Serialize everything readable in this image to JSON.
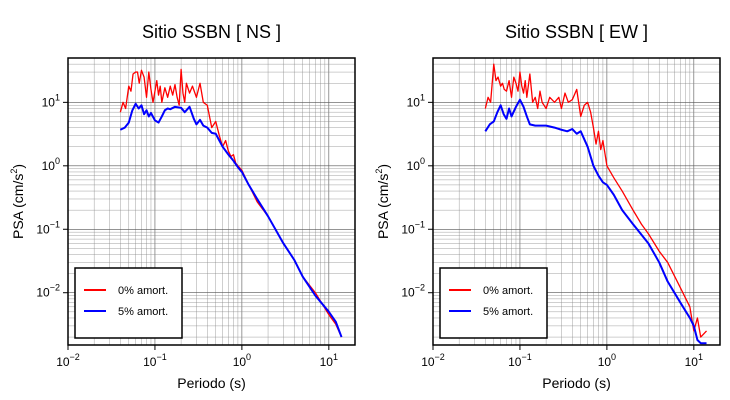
{
  "chart_data": [
    {
      "type": "line",
      "title": "Sitio SSBN [ NS ]",
      "xlabel": "Periodo (s)",
      "ylabel_main": "PSA (cm/s",
      "ylabel_sup": "2",
      "ylabel_tail": ")",
      "xscale": "log",
      "yscale": "log",
      "xlim": [
        0.01,
        20
      ],
      "ylim": [
        0.0015,
        50
      ],
      "grid": true,
      "legend_position": "bottom-left",
      "x_ticks": [
        {
          "value": 0.01,
          "base": "10",
          "exp": "−2"
        },
        {
          "value": 0.1,
          "base": "10",
          "exp": "−1"
        },
        {
          "value": 1,
          "base": "10",
          "exp": "0"
        },
        {
          "value": 10,
          "base": "10",
          "exp": "1"
        }
      ],
      "y_ticks": [
        {
          "value": 0.01,
          "base": "10",
          "exp": "−2"
        },
        {
          "value": 0.1,
          "base": "10",
          "exp": "−1"
        },
        {
          "value": 1,
          "base": "10",
          "exp": "0"
        },
        {
          "value": 10,
          "base": "10",
          "exp": "1"
        }
      ],
      "series": [
        {
          "name": "0% amort.",
          "color": "#ff0000",
          "x": [
            0.04,
            0.043,
            0.046,
            0.05,
            0.053,
            0.056,
            0.06,
            0.063,
            0.066,
            0.07,
            0.075,
            0.08,
            0.085,
            0.09,
            0.095,
            0.1,
            0.105,
            0.11,
            0.115,
            0.12,
            0.13,
            0.14,
            0.15,
            0.16,
            0.17,
            0.18,
            0.19,
            0.2,
            0.21,
            0.22,
            0.23,
            0.25,
            0.27,
            0.3,
            0.33,
            0.36,
            0.4,
            0.45,
            0.5,
            0.55,
            0.6,
            0.65,
            0.7,
            0.75,
            0.8,
            0.85,
            0.9,
            1.0,
            1.2,
            1.5,
            2,
            3,
            4,
            5,
            7,
            10,
            12,
            14
          ],
          "y": [
            7,
            10,
            8,
            18,
            15,
            28,
            30,
            30,
            20,
            32,
            25,
            12,
            30,
            16,
            10,
            15,
            22,
            13,
            18,
            10,
            17,
            12,
            18,
            13,
            19,
            12,
            9,
            33,
            14,
            10,
            20,
            14,
            18,
            12,
            20,
            10,
            9,
            4,
            5,
            3,
            2,
            2.5,
            1.7,
            1.4,
            1.5,
            1.1,
            1.0,
            0.85,
            0.5,
            0.27,
            0.16,
            0.06,
            0.033,
            0.018,
            0.01,
            0.0045,
            0.0032,
            0.002
          ]
        },
        {
          "name": "5% amort.",
          "color": "#0000ff",
          "x": [
            0.04,
            0.045,
            0.05,
            0.055,
            0.06,
            0.065,
            0.07,
            0.075,
            0.08,
            0.085,
            0.09,
            0.1,
            0.11,
            0.12,
            0.13,
            0.14,
            0.15,
            0.17,
            0.2,
            0.22,
            0.25,
            0.28,
            0.3,
            0.33,
            0.36,
            0.4,
            0.45,
            0.5,
            0.6,
            0.7,
            0.8,
            0.9,
            1.0,
            1.2,
            1.5,
            2,
            3,
            4,
            5,
            7,
            10,
            12,
            14
          ],
          "y": [
            3.7,
            4.0,
            4.8,
            7.5,
            9.5,
            8.0,
            9.0,
            6.5,
            7.5,
            6.0,
            6.8,
            5.2,
            4.8,
            6.0,
            7.5,
            8.0,
            7.8,
            8.5,
            8.2,
            7.0,
            8.5,
            5.5,
            4.5,
            5.3,
            4.3,
            4.0,
            3.3,
            3.2,
            2.0,
            1.5,
            1.2,
            0.95,
            0.8,
            0.5,
            0.3,
            0.16,
            0.06,
            0.033,
            0.018,
            0.009,
            0.005,
            0.0035,
            0.002
          ]
        }
      ]
    },
    {
      "type": "line",
      "title": "Sitio SSBN [ EW ]",
      "xlabel": "Periodo (s)",
      "ylabel_main": "PSA (cm/s",
      "ylabel_sup": "2",
      "ylabel_tail": ")",
      "xscale": "log",
      "yscale": "log",
      "xlim": [
        0.01,
        20
      ],
      "ylim": [
        0.0015,
        50
      ],
      "grid": true,
      "legend_position": "bottom-left",
      "x_ticks": [
        {
          "value": 0.01,
          "base": "10",
          "exp": "−2"
        },
        {
          "value": 0.1,
          "base": "10",
          "exp": "−1"
        },
        {
          "value": 1,
          "base": "10",
          "exp": "0"
        },
        {
          "value": 10,
          "base": "10",
          "exp": "1"
        }
      ],
      "y_ticks": [
        {
          "value": 0.01,
          "base": "10",
          "exp": "−2"
        },
        {
          "value": 0.1,
          "base": "10",
          "exp": "−1"
        },
        {
          "value": 1,
          "base": "10",
          "exp": "0"
        },
        {
          "value": 10,
          "base": "10",
          "exp": "1"
        }
      ],
      "series": [
        {
          "name": "0% amort.",
          "color": "#ff0000",
          "x": [
            0.04,
            0.043,
            0.046,
            0.05,
            0.053,
            0.056,
            0.06,
            0.063,
            0.066,
            0.07,
            0.075,
            0.08,
            0.085,
            0.09,
            0.095,
            0.1,
            0.105,
            0.11,
            0.115,
            0.12,
            0.13,
            0.14,
            0.15,
            0.16,
            0.17,
            0.18,
            0.2,
            0.22,
            0.25,
            0.28,
            0.3,
            0.33,
            0.36,
            0.4,
            0.45,
            0.5,
            0.55,
            0.6,
            0.65,
            0.7,
            0.75,
            0.8,
            0.85,
            0.9,
            1.0,
            1.2,
            1.5,
            2,
            2.5,
            3,
            4,
            5,
            7,
            9,
            10,
            11,
            12,
            14
          ],
          "y": [
            8,
            12,
            10,
            40,
            22,
            25,
            18,
            20,
            16,
            15,
            22,
            12,
            25,
            20,
            15,
            30,
            18,
            14,
            22,
            12,
            28,
            10,
            12,
            8,
            15,
            10,
            8,
            12,
            10,
            12,
            8,
            14,
            10,
            11,
            16,
            6,
            9,
            10,
            7,
            4,
            2.2,
            3.5,
            1.8,
            2.5,
            1.0,
            0.65,
            0.4,
            0.2,
            0.12,
            0.085,
            0.045,
            0.03,
            0.012,
            0.006,
            0.0025,
            0.004,
            0.002,
            0.0025
          ]
        },
        {
          "name": "5% amort.",
          "color": "#0000ff",
          "x": [
            0.04,
            0.045,
            0.05,
            0.055,
            0.06,
            0.065,
            0.07,
            0.075,
            0.08,
            0.09,
            0.1,
            0.11,
            0.12,
            0.13,
            0.15,
            0.2,
            0.25,
            0.3,
            0.35,
            0.4,
            0.45,
            0.5,
            0.6,
            0.7,
            0.8,
            0.9,
            1.0,
            1.2,
            1.5,
            2,
            3,
            4,
            5,
            7,
            9,
            10,
            11,
            12,
            14
          ],
          "y": [
            3.5,
            4.5,
            5.0,
            7.0,
            9.0,
            6.5,
            5.5,
            8.0,
            6.0,
            8.5,
            11,
            8.5,
            6.0,
            4.5,
            4.3,
            4.3,
            4.0,
            3.7,
            3.5,
            3.8,
            3.2,
            3.5,
            2.0,
            1.0,
            0.7,
            0.55,
            0.5,
            0.35,
            0.2,
            0.12,
            0.06,
            0.03,
            0.015,
            0.007,
            0.004,
            0.003,
            0.0018,
            0.0016,
            0.0016
          ]
        }
      ]
    }
  ]
}
